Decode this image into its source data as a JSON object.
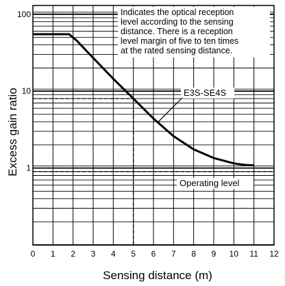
{
  "chart_data": {
    "type": "line",
    "title": "",
    "xlabel": "Sensing distance (m)",
    "ylabel": "Excess gain ratio",
    "x_scale": "linear",
    "y_scale": "log",
    "xlim": [
      0,
      12
    ],
    "ylim": [
      0.1,
      130
    ],
    "x_ticks": [
      "0",
      "1",
      "2",
      "3",
      "4",
      "5",
      "6",
      "7",
      "8",
      "9",
      "10",
      "11",
      "12"
    ],
    "x_tick_values": [
      0,
      1,
      2,
      3,
      4,
      5,
      6,
      7,
      8,
      9,
      10,
      11,
      12
    ],
    "y_ticks": [
      "1",
      "10",
      "100"
    ],
    "y_tick_values": [
      1,
      10,
      100
    ],
    "grid": true,
    "series": [
      {
        "name": "E3S-SE4S",
        "x": [
          0,
          1.8,
          2.2,
          3,
          4,
          5,
          6,
          7,
          8,
          9,
          10,
          10.5,
          11
        ],
        "y": [
          55,
          55,
          45,
          27,
          14.5,
          8,
          4.4,
          2.6,
          1.75,
          1.35,
          1.15,
          1.1,
          1.08
        ]
      }
    ],
    "annotations": {
      "description": "Indicates the optical reception level according to the sensing distance. There is a reception level margin of five to ten times at the rated sensing distance.",
      "operating_level_label": "Operating level",
      "operating_level_value": 0.9,
      "reference_x": 5,
      "reference_y": 8
    }
  }
}
